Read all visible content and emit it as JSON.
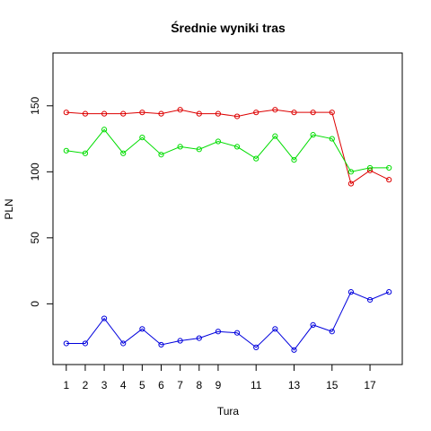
{
  "chart_data": {
    "type": "line",
    "title": "Średnie wyniki tras",
    "xlabel": "Tura",
    "ylabel": "PLN",
    "xlim": [
      0.3,
      18.7
    ],
    "ylim": [
      -46,
      190
    ],
    "x_ticks": [
      1,
      2,
      3,
      4,
      5,
      6,
      7,
      8,
      9,
      11,
      13,
      15,
      17
    ],
    "y_ticks": [
      0,
      50,
      100,
      150
    ],
    "grid": false,
    "legend": "none",
    "x": [
      1,
      2,
      3,
      4,
      5,
      6,
      7,
      8,
      9,
      10,
      11,
      12,
      13,
      14,
      15,
      16,
      17,
      18
    ],
    "series": [
      {
        "color": "#dd0000",
        "values": [
          145,
          144,
          144,
          144,
          145,
          144,
          147,
          144,
          144,
          142,
          145,
          147,
          145,
          145,
          145,
          91,
          101,
          94
        ]
      },
      {
        "color": "#00dd00",
        "values": [
          116,
          114,
          132,
          114,
          126,
          113,
          119,
          117,
          123,
          119,
          110,
          127,
          109,
          128,
          125,
          100,
          103,
          103
        ]
      },
      {
        "color": "#0000dd",
        "values": [
          -30,
          -30,
          -11,
          -30,
          -19,
          -31,
          -28,
          -26,
          -21,
          -22,
          -33,
          -19,
          -35,
          -16,
          -21,
          9,
          3,
          9
        ]
      }
    ]
  }
}
